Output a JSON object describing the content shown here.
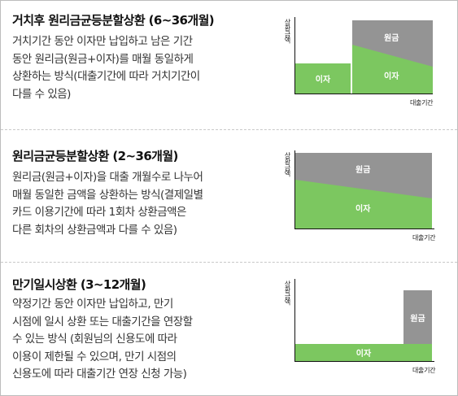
{
  "sections": [
    {
      "title": "거치후 원리금균등분할상환 (6~36개월)",
      "lines": [
        "거치기간 동안 이자만 납입하고 남은 기간",
        "동안 원리금(원금+이자)를 매월 동일하게",
        "상환하는 방식(대출기간에 따라 거치기간이",
        "다를 수 있음)"
      ],
      "diagram": {
        "y_axis": "상환금액",
        "x_axis": "대출기간",
        "labels": {
          "principal": "원금",
          "interest1": "이자",
          "interest2": "이자"
        }
      }
    },
    {
      "title": "원리금균등분할상환 (2~36개월)",
      "lines": [
        "원리금(원금+이자)을 대출 개월수로 나누어",
        "매월 동일한 금액을 상환하는 방식(결제일별",
        "카드 이용기간에 따라 1회차 상환금액은",
        "다른 회차의 상환금액과 다를 수 있음)"
      ],
      "diagram": {
        "y_axis": "상환금액",
        "x_axis": "대출기간",
        "labels": {
          "principal": "원금",
          "interest": "이자"
        }
      }
    },
    {
      "title": "만기일시상환 (3~12개월)",
      "lines": [
        "약정기간 동안 이자만 납입하고, 만기",
        "시점에 일시 상환 또는 대출기간을 연장할",
        "수 있는 방식 (회원님의 신용도에 따라",
        "이용이 제한될 수 있으며, 만기 시점의",
        "신용도에 따라 대출기간 연장 신청 가능)"
      ],
      "diagram": {
        "y_axis": "상환금액",
        "x_axis": "대출기간",
        "labels": {
          "principal": "원금",
          "interest": "이자"
        }
      }
    }
  ],
  "colors": {
    "interest": "#7cc760",
    "principal": "#949494",
    "axis": "#111111"
  }
}
